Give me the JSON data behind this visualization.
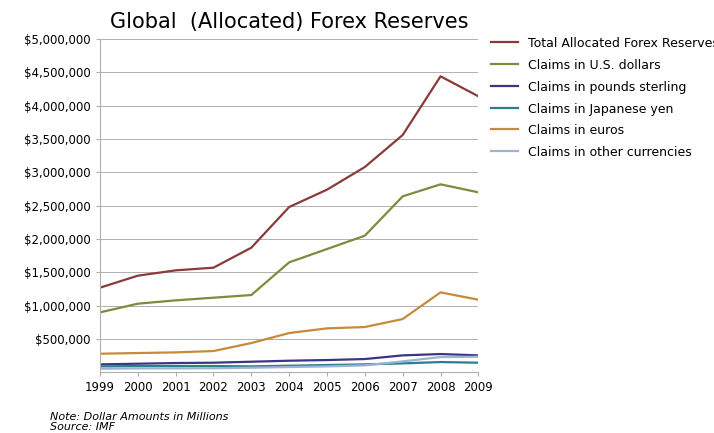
{
  "title": "Global  (Allocated) Forex Reserves",
  "note": "Note: Dollar Amounts in Millions",
  "source": "Source: IMF",
  "years": [
    1999,
    2000,
    2001,
    2002,
    2003,
    2004,
    2005,
    2006,
    2007,
    2008,
    2009
  ],
  "series": {
    "Total Allocated Forex Reserves": {
      "color": "#8b3a3a",
      "values": [
        1270000,
        1450000,
        1530000,
        1570000,
        1870000,
        2480000,
        2740000,
        3080000,
        3560000,
        4440000,
        4140000
      ]
    },
    "Claims in U.S. dollars": {
      "color": "#7b8c3e",
      "values": [
        900000,
        1030000,
        1080000,
        1120000,
        1160000,
        1650000,
        1850000,
        2050000,
        2640000,
        2820000,
        2700000
      ]
    },
    "Claims in pounds sterling": {
      "color": "#3d3580",
      "values": [
        120000,
        130000,
        140000,
        145000,
        160000,
        175000,
        185000,
        200000,
        255000,
        275000,
        255000
      ]
    },
    "Claims in Japanese yen": {
      "color": "#2e7d8c",
      "values": [
        90000,
        95000,
        95000,
        95000,
        90000,
        100000,
        110000,
        120000,
        135000,
        155000,
        145000
      ]
    },
    "Claims in euros": {
      "color": "#c68a3a",
      "values": [
        280000,
        290000,
        300000,
        320000,
        440000,
        590000,
        660000,
        680000,
        800000,
        1200000,
        1090000
      ]
    },
    "Claims in other currencies": {
      "color": "#9bb3d4",
      "values": [
        55000,
        60000,
        60000,
        62000,
        70000,
        80000,
        90000,
        105000,
        165000,
        230000,
        235000
      ]
    }
  },
  "ylim": [
    0,
    5000000
  ],
  "yticks": [
    500000,
    1000000,
    1500000,
    2000000,
    2500000,
    3000000,
    3500000,
    4000000,
    4500000,
    5000000
  ],
  "background_color": "#ffffff",
  "plot_bg_color": "#ffffff",
  "grid_color": "#b0b0b0",
  "title_fontsize": 15,
  "legend_fontsize": 9,
  "tick_fontsize": 8.5,
  "note_fontsize": 8
}
